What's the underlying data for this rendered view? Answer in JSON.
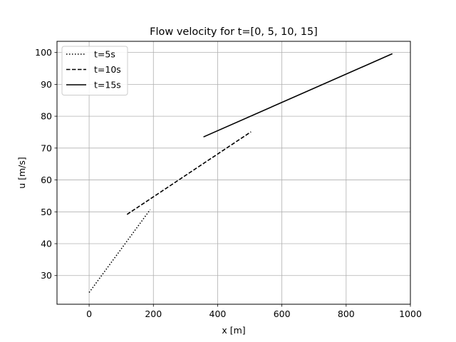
{
  "chart_data": {
    "type": "line",
    "title": "Flow velocity for t=[0, 5, 10, 15]",
    "xlabel": "x [m]",
    "ylabel": "u [m/s]",
    "xlim": [
      -100,
      1000
    ],
    "ylim": [
      21,
      103.5
    ],
    "xticks": [
      0,
      200,
      400,
      600,
      800,
      1000
    ],
    "yticks": [
      30,
      40,
      50,
      60,
      70,
      80,
      90,
      100
    ],
    "grid": true,
    "legend_position": "upper left",
    "series": [
      {
        "name": "t=5s",
        "style": "dotted",
        "color": "#000000",
        "x": [
          0,
          190
        ],
        "y": [
          24.7,
          50.7
        ]
      },
      {
        "name": "t=10s",
        "style": "dashed",
        "color": "#000000",
        "x": [
          118,
          504
        ],
        "y": [
          49.2,
          75.1
        ]
      },
      {
        "name": "t=15s",
        "style": "solid",
        "color": "#000000",
        "x": [
          356,
          944
        ],
        "y": [
          73.5,
          99.6
        ]
      }
    ]
  },
  "colors": {
    "grid": "#b0b0b0",
    "axes": "#000000",
    "background": "#ffffff",
    "legend_border": "#cccccc"
  }
}
